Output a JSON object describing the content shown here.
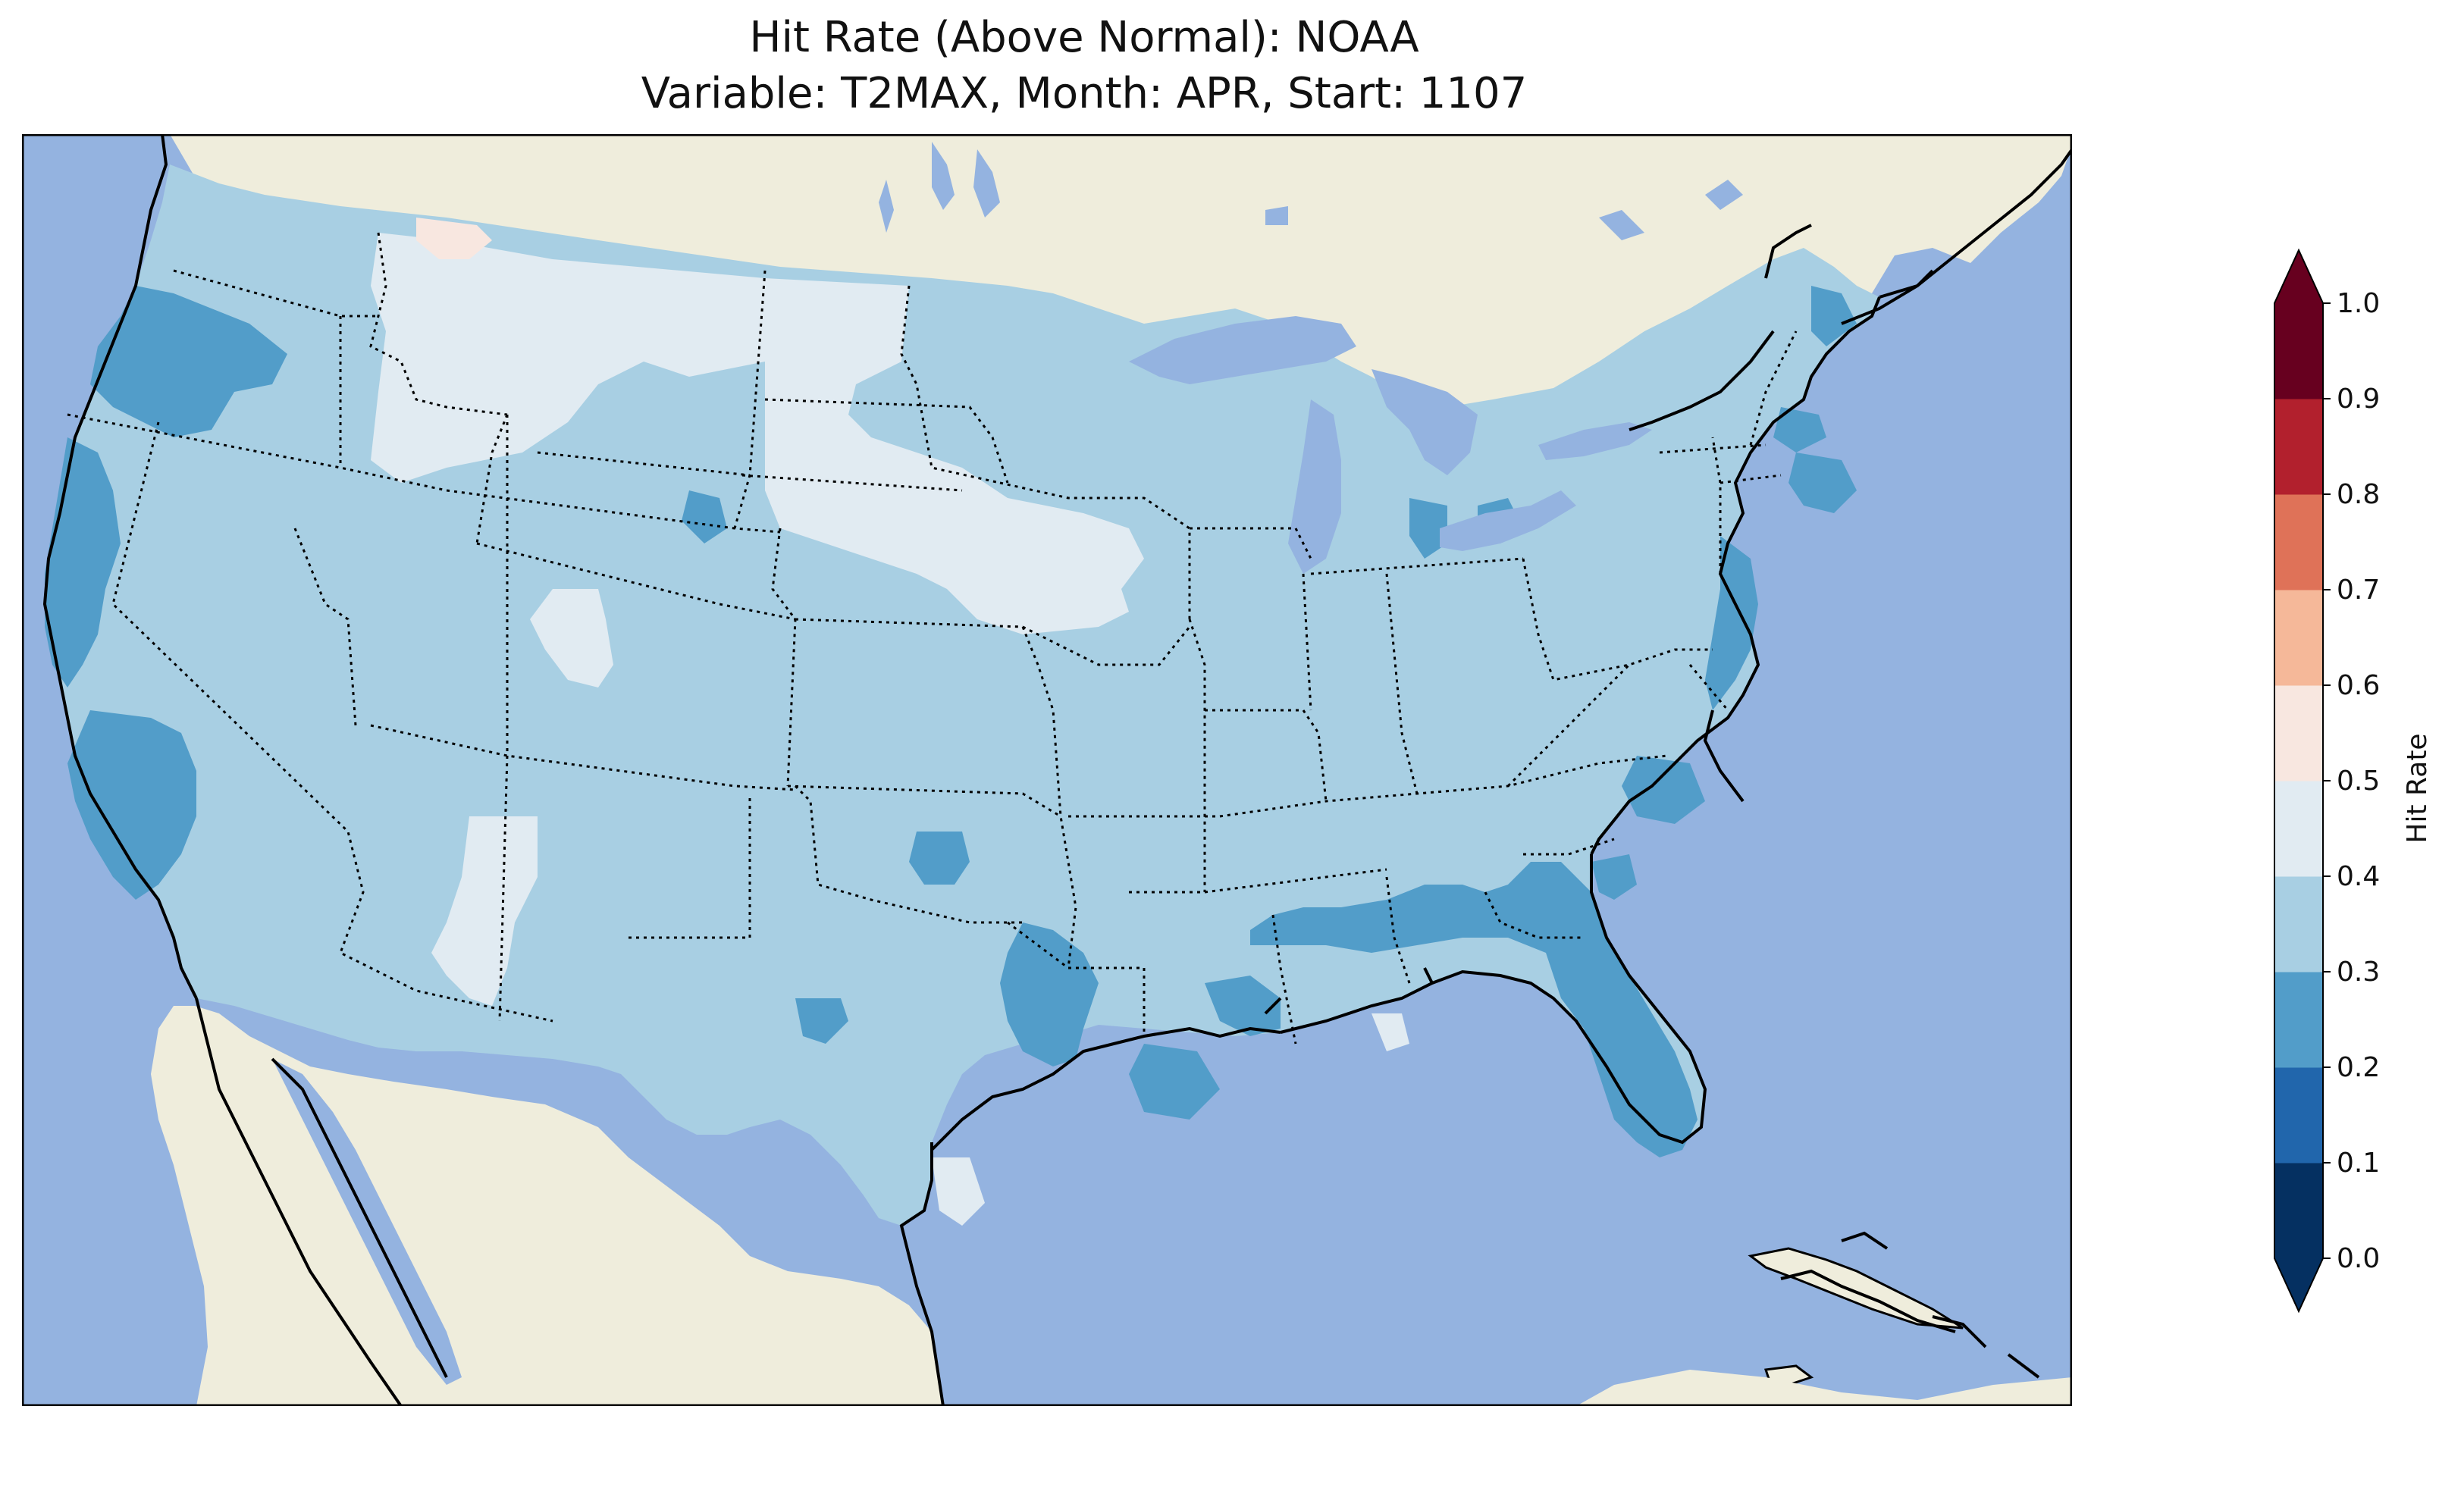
{
  "title": {
    "line1": "Hit Rate (Above Normal): NOAA",
    "line2": "Variable: T2MAX, Month: APR, Start: 1107"
  },
  "colors": {
    "ocean": "#94b3e0",
    "land": "#efeddc",
    "lake": "#94b3e0"
  },
  "colorbar": {
    "label": "Hit Rate",
    "ticks": [
      "0.0",
      "0.1",
      "0.2",
      "0.3",
      "0.4",
      "0.5",
      "0.6",
      "0.7",
      "0.8",
      "0.9",
      "1.0"
    ],
    "bins": [
      {
        "min": 0.0,
        "max": 0.1,
        "color": "#053061"
      },
      {
        "min": 0.1,
        "max": 0.2,
        "color": "#2166ac"
      },
      {
        "min": 0.2,
        "max": 0.3,
        "color": "#529dc9"
      },
      {
        "min": 0.3,
        "max": 0.4,
        "color": "#a8cfe3"
      },
      {
        "min": 0.4,
        "max": 0.5,
        "color": "#e1ebf2"
      },
      {
        "min": 0.5,
        "max": 0.6,
        "color": "#f8e7e0"
      },
      {
        "min": 0.6,
        "max": 0.7,
        "color": "#f5b899"
      },
      {
        "min": 0.7,
        "max": 0.8,
        "color": "#df7258"
      },
      {
        "min": 0.8,
        "max": 0.9,
        "color": "#b2202d"
      },
      {
        "min": 0.9,
        "max": 1.0,
        "color": "#67001f"
      }
    ],
    "under_color": "#053061",
    "over_color": "#67001f"
  }
}
